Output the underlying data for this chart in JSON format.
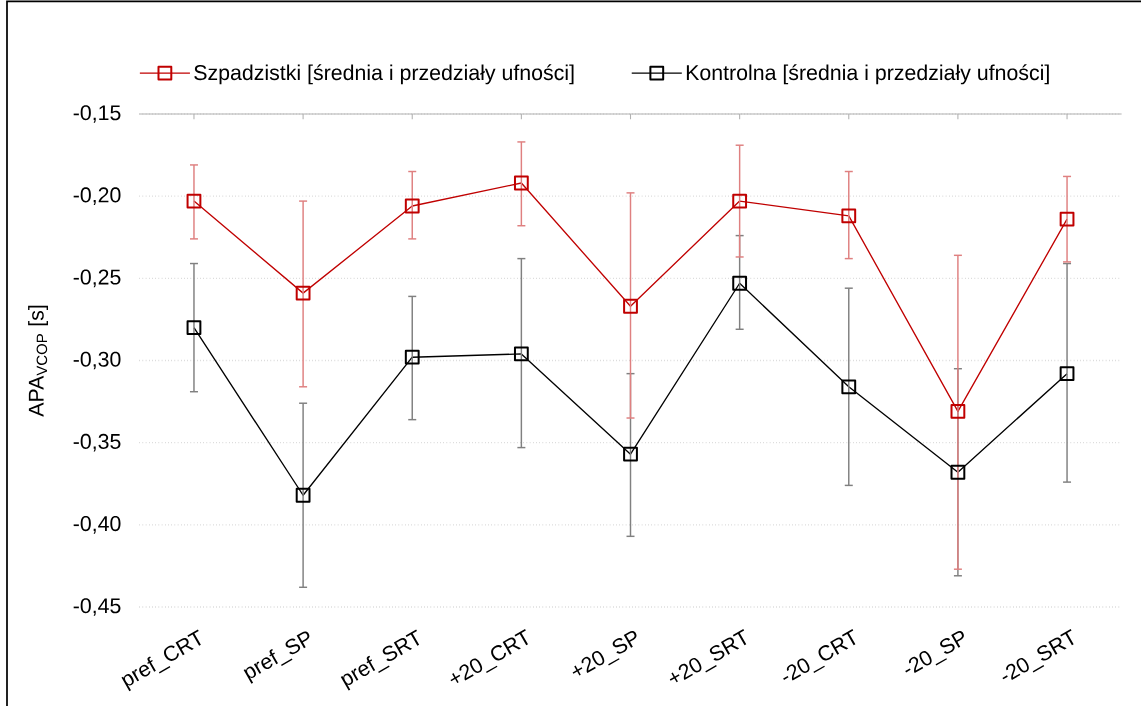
{
  "chart_data": {
    "type": "line",
    "categories": [
      "pref_CRT",
      "pref_SP",
      "pref_SRT",
      "+20_CRT",
      "+20_SP",
      "+20_SRT",
      "-20_CRT",
      "-20_SP",
      "-20_SRT"
    ],
    "ylabel": "APA$_{VCOP}$ [s]",
    "ylim": [
      -0.45,
      -0.15
    ],
    "yticks": [
      {
        "value": -0.45,
        "label": "-0,45"
      },
      {
        "value": -0.4,
        "label": "-0,40"
      },
      {
        "value": -0.35,
        "label": "-0,35"
      },
      {
        "value": -0.3,
        "label": "-0,30"
      },
      {
        "value": -0.25,
        "label": "-0,25"
      },
      {
        "value": -0.2,
        "label": "-0,20"
      },
      {
        "value": -0.15,
        "label": "-0,15"
      }
    ],
    "grid": "y",
    "legend": "top",
    "marker": "square",
    "line_style": "solid",
    "series": [
      {
        "name": "Szpadzistki [średnia i przedziały ufności]",
        "color": "#c00000",
        "values": [
          -0.203,
          -0.259,
          -0.206,
          -0.192,
          -0.267,
          -0.203,
          -0.212,
          -0.331,
          -0.214
        ],
        "errors": [
          [
            -0.226,
            -0.181
          ],
          [
            -0.316,
            -0.203
          ],
          [
            -0.226,
            -0.185
          ],
          [
            -0.218,
            -0.167
          ],
          [
            -0.335,
            -0.198
          ],
          [
            -0.237,
            -0.169
          ],
          [
            -0.238,
            -0.185
          ],
          [
            -0.427,
            -0.236
          ],
          [
            -0.24,
            -0.188
          ]
        ]
      },
      {
        "name": "Kontrolna [średnia i przedziały ufności]",
        "color": "#000000",
        "values": [
          -0.28,
          -0.382,
          -0.298,
          -0.296,
          -0.357,
          -0.253,
          -0.316,
          -0.368,
          -0.308
        ],
        "errors": [
          [
            -0.319,
            -0.241
          ],
          [
            -0.438,
            -0.326
          ],
          [
            -0.336,
            -0.261
          ],
          [
            -0.353,
            -0.238
          ],
          [
            -0.407,
            -0.308
          ],
          [
            -0.281,
            -0.224
          ],
          [
            -0.376,
            -0.256
          ],
          [
            -0.431,
            -0.305
          ],
          [
            -0.374,
            -0.241
          ]
        ]
      }
    ]
  }
}
